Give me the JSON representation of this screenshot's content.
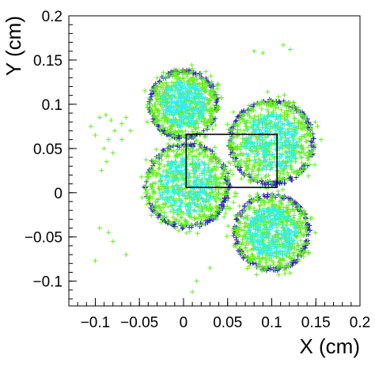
{
  "chart_data": {
    "type": "scatter",
    "title": "",
    "xlabel": "X (cm)",
    "ylabel": "Y (cm)",
    "xlim": [
      -0.13,
      0.2
    ],
    "ylim": [
      -0.128,
      0.2
    ],
    "grid": false,
    "legend": "none",
    "x_ticks": [
      -0.1,
      -0.05,
      0,
      0.05,
      0.1,
      0.15,
      0.2
    ],
    "x_tick_labels": [
      "−0.1",
      "−0.05",
      "0",
      "0.05",
      "0.1",
      "0.15",
      "0.2"
    ],
    "y_ticks": [
      -0.1,
      -0.05,
      0,
      0.05,
      0.1,
      0.15,
      0.2
    ],
    "y_tick_labels": [
      "−0.1",
      "−0.05",
      "0",
      "0.05",
      "0.1",
      "0.15",
      "0.2"
    ],
    "marker": "plus",
    "colors": {
      "rim": "#2a2ab4",
      "body": "#66ee22",
      "core": "#33eeee",
      "rect": "#000000"
    },
    "clusters": [
      {
        "center": [
          0.0,
          0.1
        ],
        "radius": 0.038
      },
      {
        "center": [
          0.1,
          0.057
        ],
        "radius": 0.047
      },
      {
        "center": [
          0.004,
          0.008
        ],
        "radius": 0.047
      },
      {
        "center": [
          0.1,
          -0.045
        ],
        "radius": 0.042
      }
    ],
    "rectangle": {
      "x0": 0.003,
      "x1": 0.106,
      "y0": 0.006,
      "y1": 0.066
    },
    "outliers": [
      [
        -0.095,
        0.085
      ],
      [
        -0.088,
        0.088
      ],
      [
        -0.082,
        0.082
      ],
      [
        -0.078,
        0.07
      ],
      [
        -0.085,
        0.06
      ],
      [
        -0.09,
        0.05
      ],
      [
        -0.1,
        0.065
      ],
      [
        -0.07,
        0.078
      ],
      [
        -0.065,
        0.085
      ],
      [
        -0.08,
        0.045
      ],
      [
        -0.087,
        0.035
      ],
      [
        -0.093,
        0.025
      ],
      [
        -0.07,
        0.06
      ],
      [
        -0.06,
        0.07
      ],
      [
        -0.105,
        0.075
      ],
      [
        -0.095,
        -0.04
      ],
      [
        -0.085,
        -0.045
      ],
      [
        -0.08,
        -0.055
      ],
      [
        -0.1,
        -0.077
      ],
      [
        -0.065,
        -0.07
      ],
      [
        0.015,
        -0.1
      ],
      [
        0.03,
        -0.085
      ],
      [
        0.01,
        -0.112
      ],
      [
        0.08,
        0.16
      ],
      [
        0.113,
        0.167
      ],
      [
        0.121,
        0.162
      ],
      [
        0.09,
        0.158
      ]
    ]
  }
}
